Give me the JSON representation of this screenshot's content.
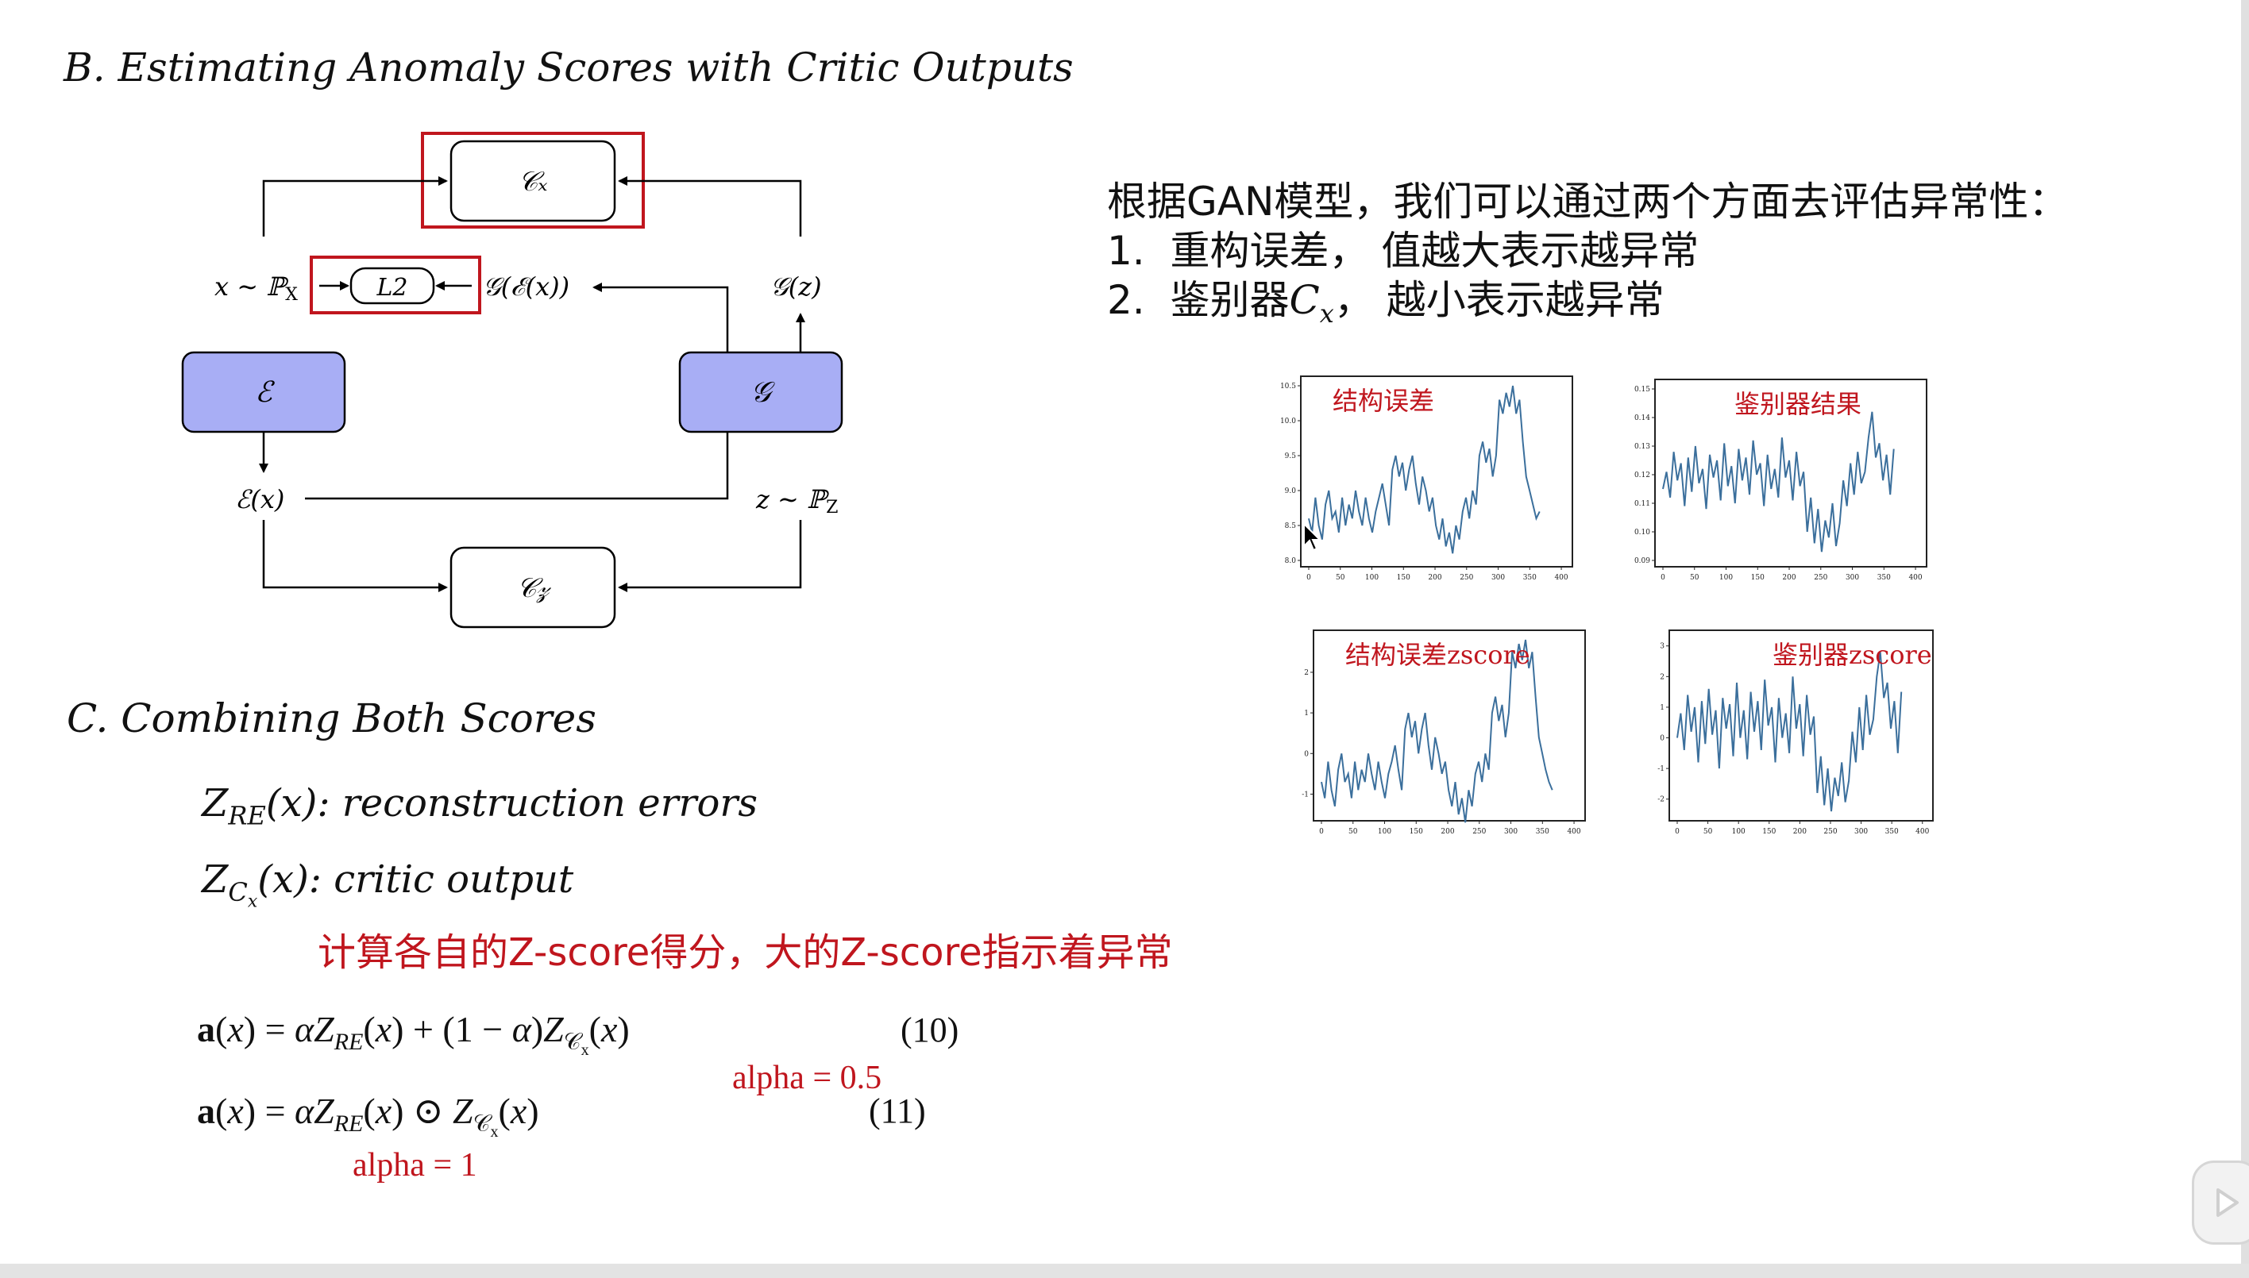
{
  "sections": {
    "b_title": "B.  Estimating Anomaly Scores with Critic Outputs",
    "c_title": "C.  Combining Both Scores"
  },
  "diagram": {
    "cx": "𝒞ₓ",
    "cz": "𝒞𝓏",
    "enc": "ℰ",
    "gen": "𝒢",
    "l2": "L2",
    "x_dist": "x ∼ ℙX",
    "g_enc": "𝒢(ℰ(x))",
    "gz": "𝒢(z)",
    "ex": "ℰ(x)",
    "z_dist": "z ∼ ℙZ"
  },
  "notes": {
    "intro": "根据GAN模型，我们可以通过两个方面去评估异常性：",
    "item1_num": "1.",
    "item1": "重构误差， 值越大表示越异常",
    "item2_num": "2.",
    "item2_pre": "鉴别器",
    "item2_post": "，  越小表示越异常"
  },
  "scores": {
    "zre_label": "reconstruction errors",
    "zcx_label": "critic output",
    "note": "计算各自的Z-score得分，大的Z-score指示着异常",
    "eq10_no": "(10)",
    "eq11_no": "(11)",
    "alpha_10": "alpha = 0.5",
    "alpha_11": "alpha = 1"
  },
  "colors": {
    "box_fill": "#a8aef5",
    "highlight": "#c0161e",
    "line": "#3b6f9c"
  },
  "chart_data": [
    {
      "type": "line",
      "title": "结构误差",
      "yticks": [
        "8.0",
        "8.5",
        "9.0",
        "9.5",
        "10.0",
        "10.5"
      ],
      "xticks": [
        "0",
        "50",
        "100",
        "150",
        "200",
        "250",
        "300",
        "350",
        "400"
      ],
      "ylim": [
        8.0,
        10.5
      ],
      "xlim": [
        0,
        400
      ],
      "series": [
        {
          "values": [
            8.6,
            8.4,
            8.9,
            8.5,
            8.3,
            8.8,
            9.0,
            8.6,
            8.7,
            8.4,
            8.9,
            8.5,
            8.8,
            8.6,
            9.0,
            8.7,
            8.5,
            8.9,
            8.6,
            8.4,
            8.7,
            8.9,
            9.1,
            8.8,
            8.5,
            9.3,
            9.5,
            9.2,
            9.4,
            9.0,
            9.3,
            9.5,
            9.1,
            8.8,
            9.2,
            9.0,
            8.7,
            8.9,
            8.5,
            8.3,
            8.6,
            8.2,
            8.4,
            8.1,
            8.5,
            8.3,
            8.7,
            8.9,
            8.6,
            9.0,
            8.8,
            9.5,
            9.7,
            9.4,
            9.6,
            9.2,
            9.5,
            10.3,
            10.1,
            10.4,
            10.2,
            10.5,
            10.1,
            10.3,
            9.7,
            9.2,
            9.0,
            8.8,
            8.6,
            8.7
          ]
        }
      ]
    },
    {
      "type": "line",
      "title": "鉴别器结果",
      "yticks": [
        "0.09",
        "0.10",
        "0.11",
        "0.12",
        "0.13",
        "0.14",
        "0.15"
      ],
      "xticks": [
        "0",
        "50",
        "100",
        "150",
        "200",
        "250",
        "300",
        "350",
        "400"
      ],
      "ylim": [
        0.09,
        0.15
      ],
      "xlim": [
        0,
        400
      ],
      "series": [
        {
          "values": [
            0.115,
            0.121,
            0.112,
            0.128,
            0.118,
            0.124,
            0.109,
            0.126,
            0.114,
            0.13,
            0.117,
            0.122,
            0.108,
            0.127,
            0.119,
            0.125,
            0.111,
            0.131,
            0.116,
            0.123,
            0.11,
            0.129,
            0.118,
            0.126,
            0.113,
            0.132,
            0.12,
            0.124,
            0.109,
            0.127,
            0.115,
            0.122,
            0.112,
            0.133,
            0.119,
            0.125,
            0.111,
            0.128,
            0.116,
            0.121,
            0.1,
            0.112,
            0.096,
            0.108,
            0.093,
            0.104,
            0.098,
            0.11,
            0.095,
            0.103,
            0.118,
            0.109,
            0.124,
            0.113,
            0.128,
            0.117,
            0.121,
            0.133,
            0.142,
            0.126,
            0.131,
            0.118,
            0.127,
            0.113,
            0.129
          ]
        }
      ]
    },
    {
      "type": "line",
      "title": "结构误差zscore",
      "yticks": [
        "-1",
        "0",
        "1",
        "2"
      ],
      "xticks": [
        "0",
        "50",
        "100",
        "150",
        "200",
        "250",
        "300",
        "350",
        "400"
      ],
      "ylim": [
        -1.5,
        2.8
      ],
      "xlim": [
        0,
        400
      ],
      "series": [
        {
          "values": [
            -0.7,
            -1.1,
            -0.2,
            -0.9,
            -1.3,
            -0.4,
            0.0,
            -0.7,
            -0.5,
            -1.1,
            -0.2,
            -0.9,
            -0.4,
            -0.7,
            0.0,
            -0.5,
            -0.9,
            -0.2,
            -0.7,
            -1.1,
            -0.5,
            -0.2,
            0.2,
            -0.4,
            -0.9,
            0.6,
            1.0,
            0.4,
            0.8,
            0.0,
            0.6,
            1.0,
            0.2,
            -0.4,
            0.4,
            0.0,
            -0.5,
            -0.2,
            -0.9,
            -1.3,
            -0.7,
            -1.5,
            -1.1,
            -1.7,
            -0.9,
            -1.3,
            -0.5,
            -0.2,
            -0.7,
            0.0,
            -0.4,
            1.0,
            1.4,
            0.8,
            1.2,
            0.4,
            1.0,
            2.5,
            2.1,
            2.7,
            2.3,
            2.8,
            2.1,
            2.5,
            1.4,
            0.4,
            0.0,
            -0.4,
            -0.7,
            -0.9
          ]
        }
      ]
    },
    {
      "type": "line",
      "title": "鉴别器zscore",
      "yticks": [
        "-2",
        "-1",
        "0",
        "1",
        "2",
        "3"
      ],
      "xticks": [
        "0",
        "50",
        "100",
        "150",
        "200",
        "250",
        "300",
        "350",
        "400"
      ],
      "ylim": [
        -2.5,
        3.2
      ],
      "xlim": [
        0,
        400
      ],
      "series": [
        {
          "values": [
            0.0,
            0.8,
            -0.4,
            1.4,
            0.2,
            1.0,
            -0.8,
            1.2,
            -0.2,
            1.6,
            0.1,
            0.9,
            -1.0,
            1.3,
            0.3,
            1.1,
            -0.6,
            1.8,
            0.0,
            0.9,
            -0.7,
            1.5,
            0.2,
            1.2,
            -0.4,
            1.9,
            0.4,
            1.0,
            -0.8,
            1.3,
            0.0,
            0.8,
            -0.5,
            2.0,
            0.3,
            1.1,
            -0.6,
            1.4,
            0.1,
            0.7,
            -1.8,
            -0.6,
            -2.2,
            -1.0,
            -2.4,
            -1.3,
            -1.9,
            -0.8,
            -2.1,
            -1.4,
            0.2,
            -0.8,
            1.0,
            -0.4,
            1.4,
            0.1,
            0.6,
            2.0,
            2.8,
            1.3,
            1.8,
            0.3,
            1.2,
            -0.5,
            1.5
          ]
        }
      ]
    }
  ]
}
